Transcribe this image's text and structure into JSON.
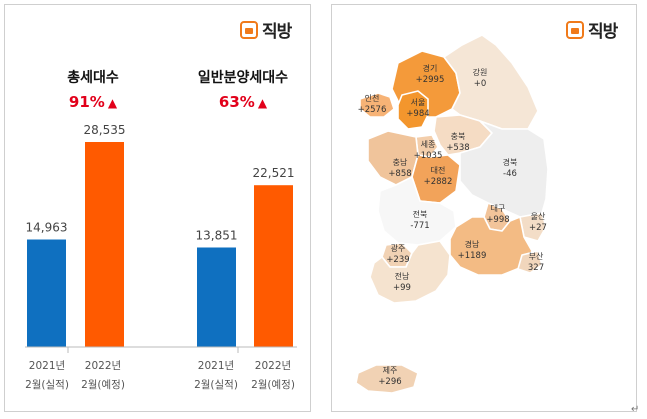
{
  "brand": {
    "logo_text": "직방"
  },
  "left_panel": {
    "charts": [
      {
        "title": "총세대수",
        "change": "91%",
        "change_arrow": "▲"
      },
      {
        "title": "일반분양세대수",
        "change": "63%",
        "change_arrow": "▲"
      }
    ]
  },
  "chart_data": [
    {
      "type": "bar",
      "title": "총세대수",
      "categories": [
        [
          "2021년",
          "2월(실적)"
        ],
        [
          "2022년",
          "2월(예정)"
        ]
      ],
      "values": [
        14963,
        28535
      ],
      "value_labels": [
        "14,963",
        "28,535"
      ],
      "colors": [
        "#0f70c0",
        "#ff5a00"
      ],
      "ylim": [
        0,
        30000
      ]
    },
    {
      "type": "bar",
      "title": "일반분양세대수",
      "categories": [
        [
          "2021년",
          "2월(실적)"
        ],
        [
          "2022년",
          "2월(예정)"
        ]
      ],
      "values": [
        13851,
        22521
      ],
      "value_labels": [
        "13,851",
        "22,521"
      ],
      "colors": [
        "#0f70c0",
        "#ff5a00"
      ],
      "ylim": [
        0,
        30000
      ]
    }
  ],
  "map": {
    "regions": [
      {
        "id": "gyeonggi",
        "name": "경기",
        "value": "+2995",
        "fill": "#f49a3a"
      },
      {
        "id": "gangwon",
        "name": "강원",
        "value": "+0",
        "fill": "#f5e6d6"
      },
      {
        "id": "incheon",
        "name": "인천",
        "value": "+2576",
        "fill": "#f7b376"
      },
      {
        "id": "seoul",
        "name": "서울",
        "value": "+984",
        "fill": "#f3962d"
      },
      {
        "id": "chungbuk",
        "name": "충북",
        "value": "+538",
        "fill": "#f5dcc4"
      },
      {
        "id": "sejong",
        "name": "세종",
        "value": "+1035",
        "fill": "#f3ceab"
      },
      {
        "id": "chungnam",
        "name": "충남",
        "value": "+858",
        "fill": "#f0c49b"
      },
      {
        "id": "daejeon",
        "name": "대전",
        "value": "+2882",
        "fill": "#f2a35a"
      },
      {
        "id": "gyeongbuk",
        "name": "경북",
        "value": "-46",
        "fill": "#eeeeee"
      },
      {
        "id": "jeonbuk",
        "name": "전북",
        "value": "-771",
        "fill": "#f7f7f7"
      },
      {
        "id": "daegu",
        "name": "대구",
        "value": "+998",
        "fill": "#f2c49a"
      },
      {
        "id": "ulsan",
        "name": "울산",
        "value": "+27",
        "fill": "#f3ddc7"
      },
      {
        "id": "gwangju",
        "name": "광주",
        "value": "+239",
        "fill": "#f1d2b4"
      },
      {
        "id": "gyeongnam",
        "name": "경남",
        "value": "+1189",
        "fill": "#f3bb84"
      },
      {
        "id": "busan",
        "name": "부산",
        "value": "327",
        "fill": "#f1d6bc"
      },
      {
        "id": "jeonnam",
        "name": "전남",
        "value": "+99",
        "fill": "#f5e3cf"
      },
      {
        "id": "jeju",
        "name": "제주",
        "value": "+296",
        "fill": "#f1d2b4"
      }
    ]
  },
  "footer_mark": "↵"
}
